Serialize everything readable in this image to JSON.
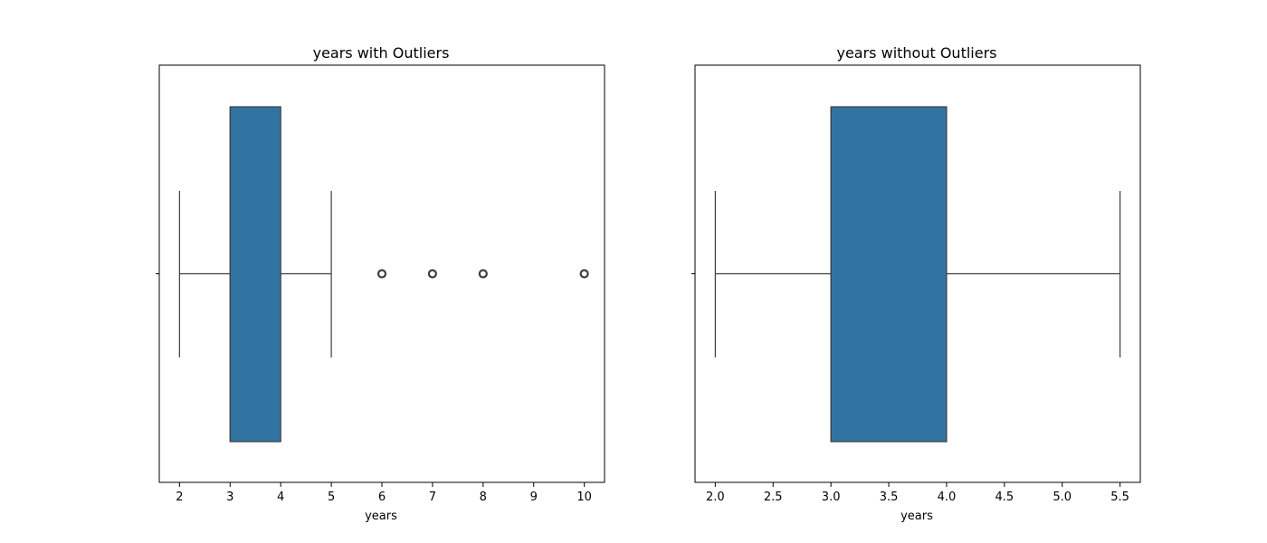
{
  "chart_data": [
    {
      "type": "boxplot",
      "title": "years with Outliers",
      "xlabel": "years",
      "xlim": [
        1.6,
        10.4
      ],
      "xticks": [
        2,
        3,
        4,
        5,
        6,
        7,
        8,
        9,
        10
      ],
      "xtick_labels": [
        "2",
        "3",
        "4",
        "5",
        "6",
        "7",
        "8",
        "9",
        "10"
      ],
      "box": {
        "whisker_low": 2,
        "q1": 3,
        "median": 3,
        "q3": 4,
        "whisker_high": 5
      },
      "outliers": [
        6,
        7,
        8,
        10
      ],
      "color": "#3274a1",
      "grid": false
    },
    {
      "type": "boxplot",
      "title": "years without Outliers",
      "xlabel": "years",
      "xlim": [
        1.825,
        5.675
      ],
      "xticks": [
        2.0,
        2.5,
        3.0,
        3.5,
        4.0,
        4.5,
        5.0,
        5.5
      ],
      "xtick_labels": [
        "2.0",
        "2.5",
        "3.0",
        "3.5",
        "4.0",
        "4.5",
        "5.0",
        "5.5"
      ],
      "box": {
        "whisker_low": 2.0,
        "q1": 3.0,
        "median": 3.0,
        "q3": 4.0,
        "whisker_high": 5.5
      },
      "outliers": [],
      "color": "#3274a1",
      "grid": false
    }
  ]
}
